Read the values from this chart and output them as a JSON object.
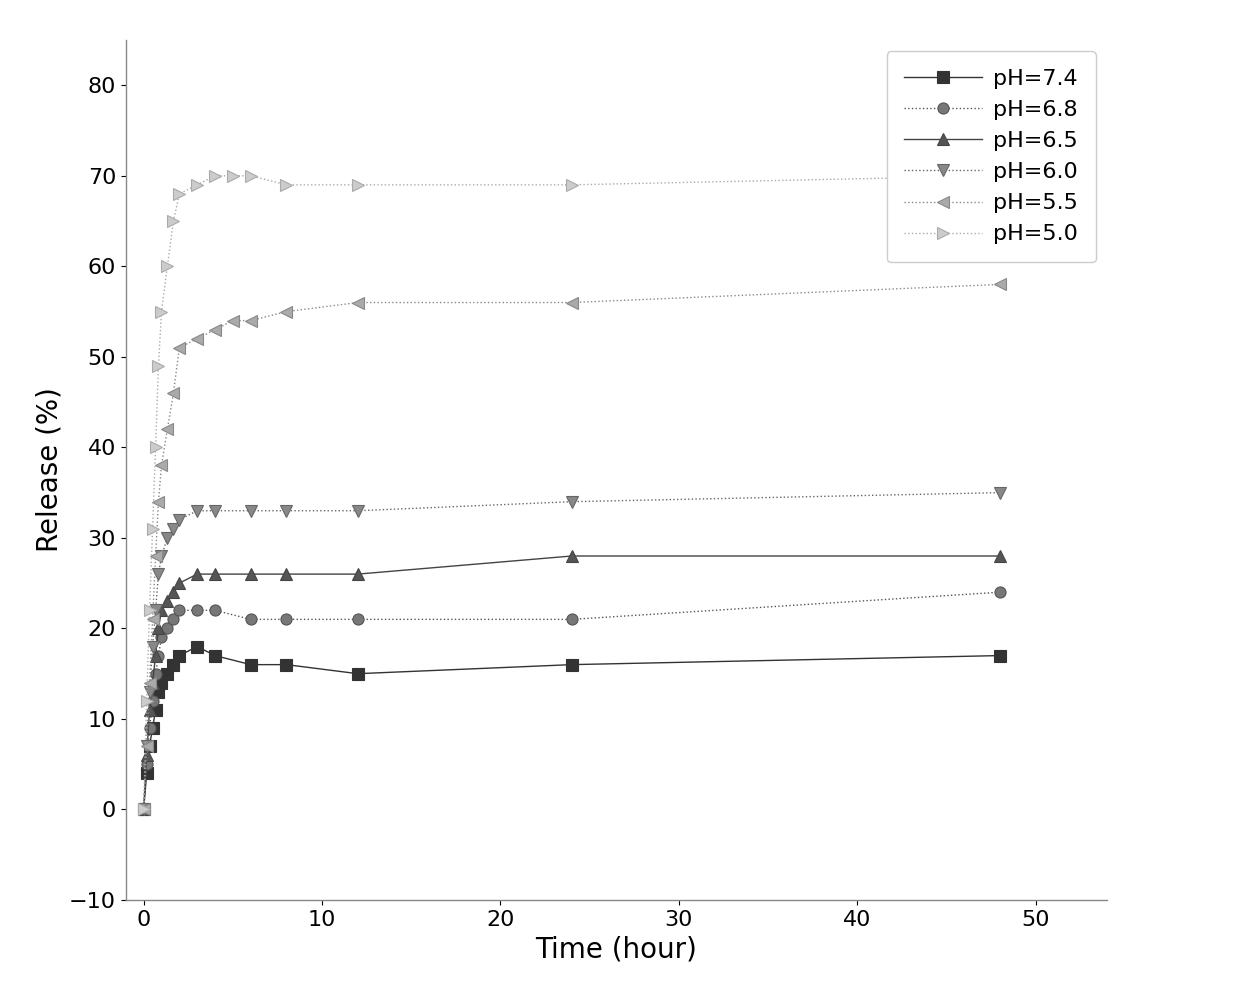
{
  "series": [
    {
      "label": "pH=7.4",
      "linestyle": "-",
      "marker": "s",
      "color": "#333333",
      "markersize": 8,
      "markerfacecolor": "#333333",
      "x": [
        0,
        0.17,
        0.33,
        0.5,
        0.67,
        0.83,
        1.0,
        1.33,
        1.67,
        2.0,
        3.0,
        4.0,
        6.0,
        8.0,
        12.0,
        24.0,
        48.0
      ],
      "y": [
        0,
        4,
        7,
        9,
        11,
        13,
        14,
        15,
        16,
        17,
        18,
        17,
        16,
        16,
        15,
        16,
        17
      ]
    },
    {
      "label": "pH=6.8",
      "linestyle": ":",
      "marker": "o",
      "color": "#555555",
      "markersize": 8,
      "markerfacecolor": "#777777",
      "x": [
        0,
        0.17,
        0.33,
        0.5,
        0.67,
        0.83,
        1.0,
        1.33,
        1.67,
        2.0,
        3.0,
        4.0,
        6.0,
        8.0,
        12.0,
        24.0,
        48.0
      ],
      "y": [
        0,
        5,
        9,
        12,
        15,
        17,
        19,
        20,
        21,
        22,
        22,
        22,
        21,
        21,
        21,
        21,
        24
      ]
    },
    {
      "label": "pH=6.5",
      "linestyle": "-",
      "marker": "^",
      "color": "#444444",
      "markersize": 8,
      "markerfacecolor": "#555555",
      "x": [
        0,
        0.17,
        0.33,
        0.5,
        0.67,
        0.83,
        1.0,
        1.33,
        1.67,
        2.0,
        3.0,
        4.0,
        6.0,
        8.0,
        12.0,
        24.0,
        48.0
      ],
      "y": [
        0,
        6,
        11,
        14,
        17,
        20,
        22,
        23,
        24,
        25,
        26,
        26,
        26,
        26,
        26,
        28,
        28
      ]
    },
    {
      "label": "pH=6.0",
      "linestyle": ":",
      "marker": "v",
      "color": "#666666",
      "markersize": 8,
      "markerfacecolor": "#888888",
      "x": [
        0,
        0.17,
        0.33,
        0.5,
        0.67,
        0.83,
        1.0,
        1.33,
        1.67,
        2.0,
        3.0,
        4.0,
        6.0,
        8.0,
        12.0,
        24.0,
        48.0
      ],
      "y": [
        0,
        7,
        13,
        18,
        22,
        26,
        28,
        30,
        31,
        32,
        33,
        33,
        33,
        33,
        33,
        34,
        35
      ]
    },
    {
      "label": "pH=5.5",
      "linestyle": ":",
      "marker": "<",
      "color": "#888888",
      "markersize": 9,
      "markerfacecolor": "#aaaaaa",
      "x": [
        0,
        0.17,
        0.33,
        0.5,
        0.67,
        0.83,
        1.0,
        1.33,
        1.67,
        2.0,
        3.0,
        4.0,
        5.0,
        6.0,
        8.0,
        12.0,
        24.0,
        48.0
      ],
      "y": [
        0,
        7,
        14,
        21,
        28,
        34,
        38,
        42,
        46,
        51,
        52,
        53,
        54,
        54,
        55,
        56,
        56,
        58
      ]
    },
    {
      "label": "pH=5.0",
      "linestyle": ":",
      "marker": ">",
      "color": "#aaaaaa",
      "markersize": 9,
      "markerfacecolor": "#cccccc",
      "x": [
        0,
        0.17,
        0.33,
        0.5,
        0.67,
        0.83,
        1.0,
        1.33,
        1.67,
        2.0,
        3.0,
        4.0,
        5.0,
        6.0,
        8.0,
        12.0,
        24.0,
        48.0
      ],
      "y": [
        0,
        12,
        22,
        31,
        40,
        49,
        55,
        60,
        65,
        68,
        69,
        70,
        70,
        70,
        69,
        69,
        69,
        70
      ]
    }
  ],
  "xlabel": "Time (hour)",
  "ylabel": "Release (%)",
  "xlim": [
    -1,
    54
  ],
  "ylim": [
    -10,
    85
  ],
  "xticks": [
    0,
    10,
    20,
    30,
    40,
    50
  ],
  "yticks": [
    -10,
    0,
    10,
    20,
    30,
    40,
    50,
    60,
    70,
    80
  ],
  "background_color": "#ffffff",
  "legend_loc": "upper right",
  "axis_label_fontsize": 20,
  "tick_fontsize": 16,
  "legend_fontsize": 16
}
